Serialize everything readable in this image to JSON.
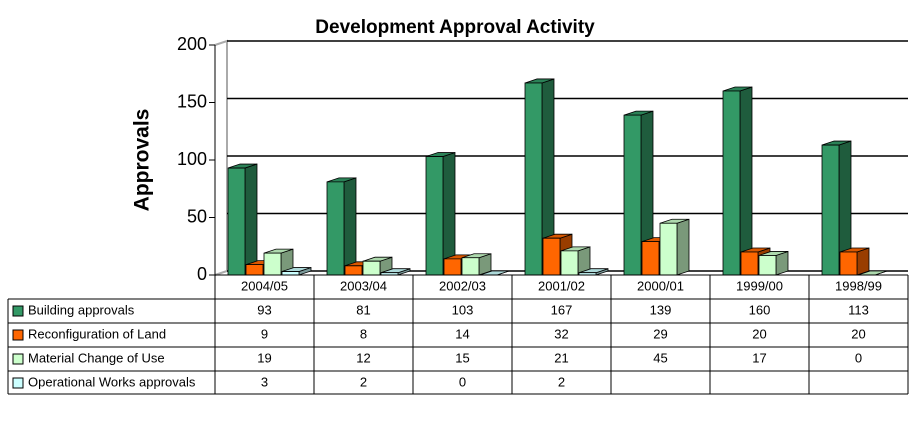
{
  "chart_data": {
    "type": "bar3d",
    "title": "Development Approval Activity",
    "y_label": "Approvals",
    "categories": [
      "2004/05",
      "2003/04",
      "2002/03",
      "2001/02",
      "2000/01",
      "1999/00",
      "1998/99"
    ],
    "series": [
      {
        "name": "Building approvals",
        "color": "#339966",
        "values": [
          93,
          81,
          103,
          167,
          139,
          160,
          113
        ]
      },
      {
        "name": "Reconfiguration of Land",
        "color": "#ff6600",
        "values": [
          9,
          8,
          14,
          32,
          29,
          20,
          20
        ]
      },
      {
        "name": "Material Change of Use",
        "color": "#ccffcc",
        "values": [
          19,
          12,
          15,
          21,
          45,
          17,
          0
        ]
      },
      {
        "name": "Operational Works approvals",
        "color": "#ccffff",
        "values": [
          3,
          2,
          0,
          2,
          null,
          null,
          null
        ]
      }
    ],
    "ylim": [
      0,
      200
    ],
    "yticks": [
      0,
      50,
      100,
      150,
      200
    ],
    "grid": true
  }
}
